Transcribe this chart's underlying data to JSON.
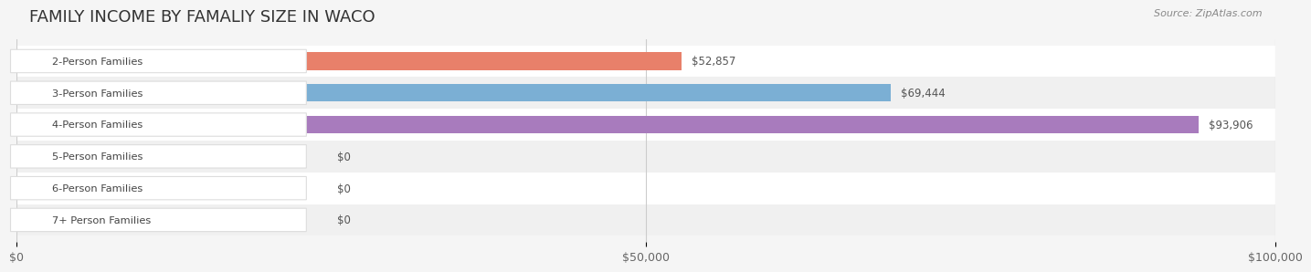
{
  "title": "FAMILY INCOME BY FAMALIY SIZE IN WACO",
  "source": "Source: ZipAtlas.com",
  "categories": [
    "2-Person Families",
    "3-Person Families",
    "4-Person Families",
    "5-Person Families",
    "6-Person Families",
    "7+ Person Families"
  ],
  "values": [
    52857,
    69444,
    93906,
    0,
    0,
    0
  ],
  "bar_colors": [
    "#E8806A",
    "#7BAFD4",
    "#A87BBD",
    "#5BBFB5",
    "#9B9BD4",
    "#F0A0B8"
  ],
  "label_colors": [
    "#E8806A",
    "#7BAFD4",
    "#A87BBD",
    "#5BBFB5",
    "#9B9BD4",
    "#F0A0B8"
  ],
  "xlim": [
    0,
    100000
  ],
  "xticks": [
    0,
    50000,
    100000
  ],
  "xticklabels": [
    "$0",
    "$50,000",
    "$100,000"
  ],
  "bg_color": "#f5f5f5",
  "row_bg_color": "#ececec",
  "title_fontsize": 13,
  "bar_height": 0.55,
  "value_labels": [
    "$52,857",
    "$69,444",
    "$93,906",
    "$0",
    "$0",
    "$0"
  ]
}
